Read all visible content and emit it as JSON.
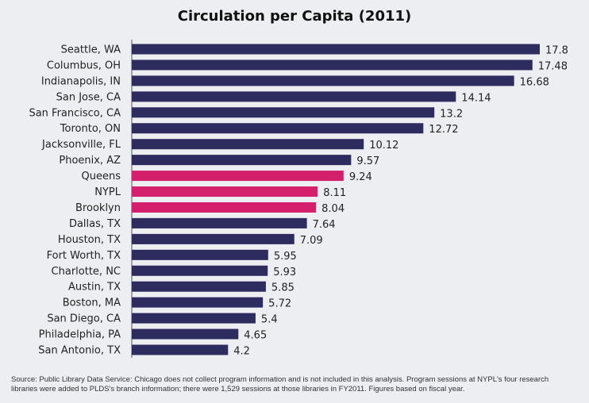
{
  "chart_data": {
    "type": "bar",
    "orientation": "horizontal",
    "title": "Circulation per Capita (2011)",
    "categories": [
      "Seattle, WA",
      "Columbus, OH",
      "Indianapolis, IN",
      "San Jose, CA",
      "San Francisco, CA",
      "Toronto, ON",
      "Jacksonville, FL",
      "Phoenix, AZ",
      "Queens",
      "NYPL",
      "Brooklyn",
      "Dallas, TX",
      "Houston, TX",
      "Fort Worth, TX",
      "Charlotte, NC",
      "Austin, TX",
      "Boston, MA",
      "San Diego, CA",
      "Philadelphia, PA",
      "San Antonio, TX"
    ],
    "values": [
      17.8,
      17.48,
      16.68,
      14.14,
      13.2,
      12.72,
      10.12,
      9.57,
      9.24,
      8.11,
      8.04,
      7.64,
      7.09,
      5.95,
      5.93,
      5.85,
      5.72,
      5.4,
      4.65,
      4.2
    ],
    "value_labels": [
      "17.8",
      "17.48",
      "16.68",
      "14.14",
      "13.2",
      "12.72",
      "10.12",
      "9.57",
      "9.24",
      "8.11",
      "8.04",
      "7.64",
      "7.09",
      "5.95",
      "5.93",
      "5.85",
      "5.72",
      "5.4",
      "4.65",
      "4.2"
    ],
    "highlighted": [
      "Queens",
      "NYPL",
      "Brooklyn"
    ],
    "colors": {
      "default_bar": "#2e2b5f",
      "highlight_bar": "#d4206c",
      "axis": "#888888"
    },
    "xlim": [
      0,
      17.8
    ],
    "grid": false,
    "xlabel": "",
    "ylabel": ""
  },
  "footer": {
    "source_line_1": "Source: Public Library Data Service: Chicago does not collect program information and is not included in this analysis. Program sessions at NYPL's four research",
    "source_line_2": "libraries were added to PLDS's branch information; there were 1,529 sessions at those libraries in FY2011. Figures based on fiscal year."
  }
}
